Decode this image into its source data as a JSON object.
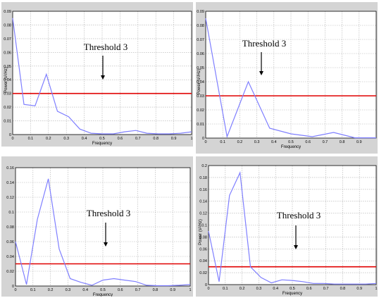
{
  "colors": {
    "series": "#7f7fff",
    "threshold": "#e00000",
    "grid": "#b0b0b0",
    "panel_bg": "#d4d4d4",
    "plot_bg": "#ffffff"
  },
  "chart_data": [
    {
      "type": "line",
      "xlabel": "Frequency",
      "ylabel": "Power (s²/Hz)",
      "xlim": [
        0,
        1
      ],
      "ylim": [
        0,
        0.09
      ],
      "xticks": [
        "0",
        "0.1",
        "0.2",
        "0.3",
        "0.4",
        "0.5",
        "0.6",
        "0.7",
        "0.8",
        "0.9",
        "1"
      ],
      "yticks": [
        "0",
        "0.01",
        "0.02",
        "0.03",
        "0.04",
        "0.05",
        "0.06",
        "0.07",
        "0.08",
        "0.09"
      ],
      "x": [
        0,
        0.063,
        0.125,
        0.188,
        0.25,
        0.313,
        0.375,
        0.438,
        0.5,
        0.563,
        0.625,
        0.688,
        0.75,
        0.813,
        0.875,
        0.938,
        1.0
      ],
      "y": [
        0.085,
        0.022,
        0.021,
        0.044,
        0.017,
        0.013,
        0.004,
        0.001,
        0.0005,
        0.0005,
        0.002,
        0.003,
        0.001,
        0.0005,
        0.0005,
        0.001,
        0.002
      ],
      "threshold": 0.03,
      "annotation": "Threshold 3",
      "grid": true
    },
    {
      "type": "line",
      "xlabel": "Frequency",
      "ylabel": "Power (s²/Hz)",
      "xlim": [
        0,
        1
      ],
      "ylim": [
        0,
        0.09
      ],
      "xticks": [
        "0",
        "0.1",
        "0.2",
        "0.3",
        "0.4",
        "0.5",
        "0.6",
        "0.7",
        "0.8",
        "0.9"
      ],
      "yticks": [
        "0",
        "0.01",
        "0.02",
        "0.03",
        "0.04",
        "0.05",
        "0.06",
        "0.07",
        "0.08",
        "0.09"
      ],
      "x": [
        0,
        0.125,
        0.25,
        0.375,
        0.5,
        0.625,
        0.75,
        0.875,
        1.0
      ],
      "y": [
        0.085,
        0.001,
        0.04,
        0.007,
        0.003,
        0.001,
        0.004,
        0.0002,
        0.0002
      ],
      "threshold": 0.03,
      "annotation": "Threshold 3",
      "grid": true
    },
    {
      "type": "line",
      "xlabel": "Frequency",
      "ylabel": "",
      "xlim": [
        0,
        1
      ],
      "ylim": [
        0,
        0.16
      ],
      "xticks": [
        "0",
        "0.1",
        "0.2",
        "0.3",
        "0.4",
        "0.5",
        "0.6",
        "0.7",
        "0.8",
        "0.9",
        "1"
      ],
      "yticks": [
        "0",
        "0.02",
        "0.04",
        "0.06",
        "0.08",
        "0.1",
        "0.12",
        "0.14",
        "0.16"
      ],
      "x": [
        0,
        0.063,
        0.125,
        0.188,
        0.25,
        0.313,
        0.375,
        0.438,
        0.5,
        0.563,
        0.625,
        0.688,
        0.75,
        0.813,
        0.875,
        0.938,
        1.0
      ],
      "y": [
        0.06,
        0.002,
        0.09,
        0.145,
        0.05,
        0.01,
        0.005,
        0.001,
        0.008,
        0.01,
        0.008,
        0.006,
        0.001,
        0.0005,
        0.0005,
        0.001,
        0.002
      ],
      "threshold": 0.03,
      "annotation": "Threshold 3",
      "grid": true
    },
    {
      "type": "line",
      "xlabel": "Frequency",
      "ylabel": "Power (s²/Hz)",
      "xlim": [
        0,
        1
      ],
      "ylim": [
        0,
        0.2
      ],
      "xticks": [
        "0",
        "0.1",
        "0.2",
        "0.3",
        "0.4",
        "0.5",
        "0.6",
        "0.7",
        "0.8",
        "0.9",
        "1"
      ],
      "yticks": [
        "0",
        "0.02",
        "0.04",
        "0.06",
        "0.08",
        "0.1",
        "0.12",
        "0.14",
        "0.16",
        "0.18",
        "0.2"
      ],
      "x": [
        0,
        0.063,
        0.125,
        0.188,
        0.25,
        0.313,
        0.375,
        0.438,
        0.5,
        0.563,
        0.625,
        0.688,
        0.75,
        0.813,
        0.875,
        0.938,
        1.0
      ],
      "y": [
        0.09,
        0.005,
        0.15,
        0.188,
        0.03,
        0.012,
        0.003,
        0.008,
        0.007,
        0.005,
        0.002,
        0.002,
        0.001,
        0.001,
        0.001,
        0.001,
        0.002
      ],
      "threshold": 0.03,
      "annotation": "Threshold 3",
      "grid": true
    }
  ]
}
